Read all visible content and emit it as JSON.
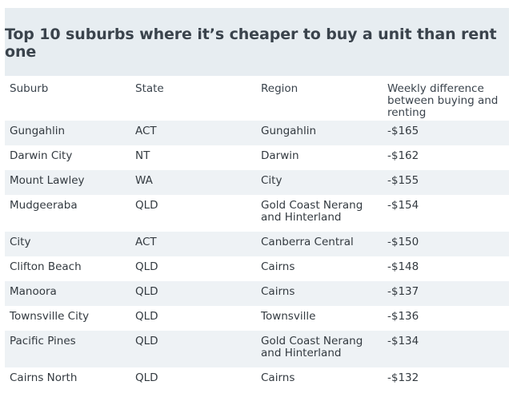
{
  "title": "Top 10 suburbs where it’s cheaper to buy a unit than rent one",
  "columns": [
    "Suburb",
    "State",
    "Region",
    "Weekly difference between buying and renting"
  ],
  "rows": [
    [
      "Gungahlin",
      "ACT",
      "Gungahlin",
      "-$165"
    ],
    [
      "Darwin City",
      "NT",
      "Darwin",
      "-$162"
    ],
    [
      "Mount Lawley",
      "WA",
      "City",
      "-$155"
    ],
    [
      "Mudgeeraba",
      "QLD",
      "Gold Coast Nerang and Hinterland",
      "-$154"
    ],
    [
      "City",
      "ACT",
      "Canberra Central",
      "-$150"
    ],
    [
      "Clifton Beach",
      "QLD",
      "Cairns",
      "-$148"
    ],
    [
      "Manoora",
      "QLD",
      "Cairns",
      "-$137"
    ],
    [
      "Townsville City",
      "QLD",
      "Townsville",
      "-$136"
    ],
    [
      "Pacific Pines",
      "QLD",
      "Gold Coast Nerang and Hinterland",
      "-$134"
    ],
    [
      "Cairns North",
      "QLD",
      "Cairns",
      "-$132"
    ]
  ],
  "colors": {
    "title_background": "#e7edf1",
    "row_stripe": "#eef2f5",
    "text": "#333a40"
  }
}
